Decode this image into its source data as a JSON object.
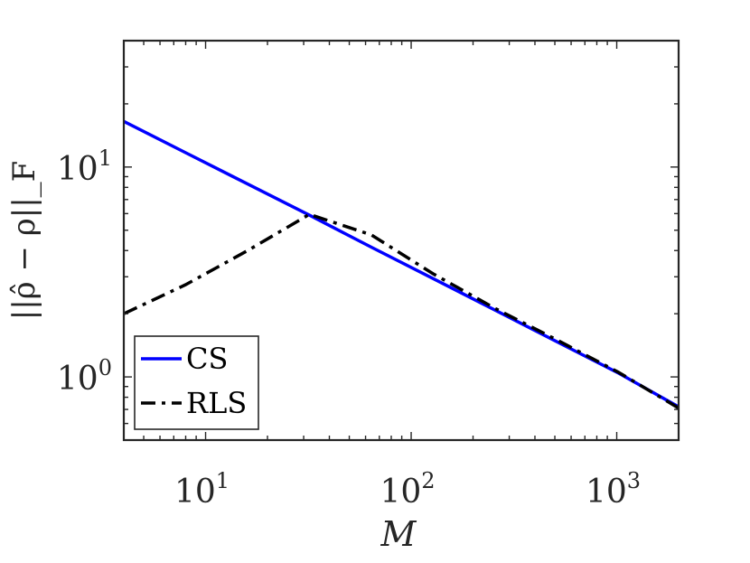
{
  "chart_data": {
    "type": "line",
    "x_scale": "log",
    "y_scale": "log",
    "xlim": [
      4,
      2000
    ],
    "ylim": [
      0.5,
      40
    ],
    "xlabel": "M",
    "ylabel": "||ρ̂ − ρ||_F",
    "x_ticks": [
      {
        "value": 10,
        "base": "10",
        "exp": "1"
      },
      {
        "value": 100,
        "base": "10",
        "exp": "2"
      },
      {
        "value": 1000,
        "base": "10",
        "exp": "3"
      }
    ],
    "y_ticks": [
      {
        "value": 1,
        "base": "10",
        "exp": "0"
      },
      {
        "value": 10,
        "base": "10",
        "exp": "1"
      }
    ],
    "legend_position": "bottom-left",
    "grid": false,
    "series": [
      {
        "name": "CS",
        "color": "#0000ff",
        "line_style": "solid",
        "x": [
          4,
          8,
          16,
          32,
          64,
          128,
          256,
          512,
          1024,
          2000
        ],
        "y": [
          16.5,
          11.7,
          8.3,
          5.9,
          4.15,
          2.94,
          2.08,
          1.47,
          1.04,
          0.72
        ]
      },
      {
        "name": "RLS",
        "color": "#000000",
        "line_style": "dash-dot",
        "x": [
          4,
          8,
          16,
          32,
          64,
          128,
          256,
          512,
          1024,
          2000
        ],
        "y": [
          2.0,
          2.75,
          4.0,
          5.95,
          4.75,
          3.1,
          2.12,
          1.5,
          1.05,
          0.71
        ]
      }
    ]
  }
}
